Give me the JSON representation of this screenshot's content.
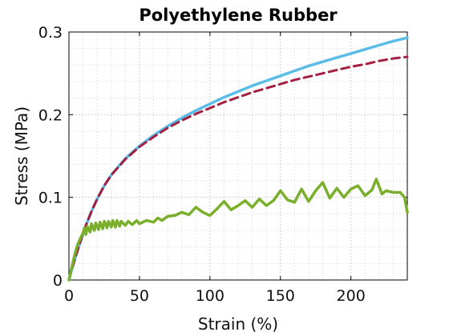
{
  "chart_data": {
    "type": "line",
    "title": "Polyethylene Rubber",
    "xlabel": "Strain (%)",
    "ylabel": "Stress (MPa)",
    "xlim": [
      0,
      240
    ],
    "ylim": [
      0,
      0.3
    ],
    "x_ticks": [
      0,
      50,
      100,
      150,
      200
    ],
    "x_tick_labels": [
      "0",
      "50",
      "100",
      "150",
      "200"
    ],
    "y_ticks": [
      0,
      0.1,
      0.2,
      0.3
    ],
    "y_tick_labels": [
      "0",
      "0.1",
      "0.2",
      "0.3"
    ],
    "grid": true,
    "minor_grid": true,
    "legend": false,
    "series": [
      {
        "color": "#5bbce8",
        "style": "solid",
        "x": [
          0,
          2,
          5,
          8,
          12,
          16,
          20,
          25,
          30,
          40,
          50,
          60,
          70,
          80,
          90,
          100,
          110,
          120,
          130,
          140,
          150,
          160,
          170,
          180,
          190,
          200,
          210,
          220,
          230,
          240
        ],
        "y": [
          0,
          0.013,
          0.03,
          0.046,
          0.066,
          0.083,
          0.098,
          0.114,
          0.127,
          0.147,
          0.162,
          0.175,
          0.186,
          0.196,
          0.205,
          0.213,
          0.221,
          0.228,
          0.235,
          0.241,
          0.247,
          0.253,
          0.259,
          0.264,
          0.269,
          0.274,
          0.279,
          0.284,
          0.289,
          0.293
        ]
      },
      {
        "color": "#a52040",
        "style": "dashed",
        "x": [
          0,
          2,
          5,
          8,
          12,
          16,
          20,
          25,
          30,
          40,
          50,
          60,
          70,
          80,
          90,
          100,
          110,
          120,
          130,
          140,
          150,
          160,
          170,
          180,
          190,
          200,
          210,
          220,
          230,
          240
        ],
        "y": [
          0,
          0.013,
          0.03,
          0.046,
          0.066,
          0.083,
          0.098,
          0.114,
          0.127,
          0.146,
          0.161,
          0.173,
          0.184,
          0.193,
          0.201,
          0.208,
          0.215,
          0.221,
          0.227,
          0.232,
          0.237,
          0.242,
          0.246,
          0.25,
          0.254,
          0.258,
          0.261,
          0.265,
          0.268,
          0.27
        ]
      },
      {
        "color": "#7aaf2c",
        "style": "solid",
        "x": [
          0,
          2,
          4,
          6,
          8,
          10,
          11,
          12,
          13,
          15,
          16,
          18,
          19,
          21,
          22,
          24,
          25,
          27,
          28,
          30,
          31,
          33,
          34,
          36,
          37,
          40,
          42,
          45,
          48,
          50,
          55,
          60,
          63,
          66,
          70,
          75,
          80,
          85,
          90,
          95,
          100,
          105,
          110,
          115,
          120,
          125,
          130,
          135,
          140,
          145,
          150,
          155,
          160,
          165,
          170,
          175,
          180,
          185,
          190,
          195,
          200,
          205,
          210,
          215,
          218,
          222,
          225,
          230,
          235,
          238,
          240
        ],
        "y": [
          0,
          0.015,
          0.03,
          0.042,
          0.05,
          0.057,
          0.063,
          0.055,
          0.065,
          0.058,
          0.068,
          0.06,
          0.069,
          0.061,
          0.07,
          0.062,
          0.071,
          0.063,
          0.071,
          0.064,
          0.072,
          0.064,
          0.072,
          0.065,
          0.071,
          0.066,
          0.071,
          0.067,
          0.072,
          0.068,
          0.072,
          0.07,
          0.075,
          0.072,
          0.077,
          0.078,
          0.082,
          0.079,
          0.088,
          0.082,
          0.078,
          0.086,
          0.095,
          0.085,
          0.09,
          0.096,
          0.088,
          0.098,
          0.09,
          0.096,
          0.108,
          0.097,
          0.094,
          0.11,
          0.095,
          0.108,
          0.118,
          0.099,
          0.111,
          0.1,
          0.11,
          0.114,
          0.102,
          0.109,
          0.122,
          0.104,
          0.108,
          0.106,
          0.106,
          0.1,
          0.082
        ]
      }
    ]
  }
}
